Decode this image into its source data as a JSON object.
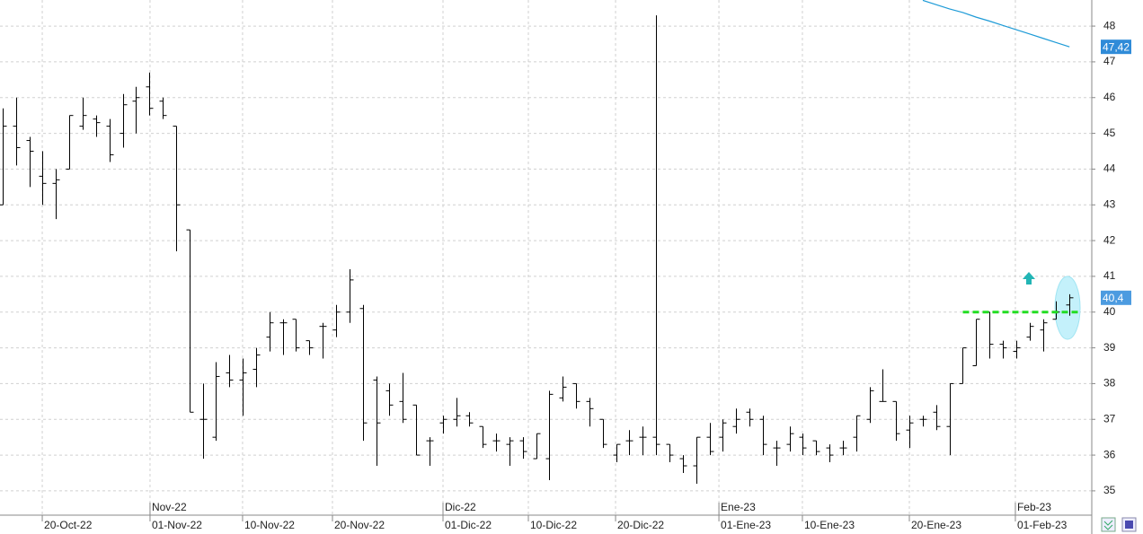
{
  "chart_data": {
    "type": "ohlc",
    "xlim": [
      -0.2,
      81.67
    ],
    "ylim": [
      34.32,
      48.73
    ],
    "yticks": [
      35,
      36,
      37,
      38,
      39,
      40,
      41,
      42,
      43,
      44,
      45,
      46,
      47,
      48
    ],
    "xticks": [
      {
        "value": 2.97,
        "label": "20-Oct-22"
      },
      {
        "value": 11.05,
        "label": "01-Nov-22"
      },
      {
        "value": 17.99,
        "label": "10-Nov-22"
      },
      {
        "value": 24.73,
        "label": "20-Nov-22"
      },
      {
        "value": 33.02,
        "label": "01-Dic-22"
      },
      {
        "value": 39.42,
        "label": "10-Dic-22"
      },
      {
        "value": 45.96,
        "label": "20-Dic-22"
      },
      {
        "value": 53.71,
        "label": "01-Ene-23"
      },
      {
        "value": 59.97,
        "label": "10-Ene-23"
      },
      {
        "value": 67.99,
        "label": "20-Ene-23"
      },
      {
        "value": 75.94,
        "label": "01-Feb-23"
      }
    ],
    "month_ticks": [
      {
        "value": 11.05,
        "label": "Nov-22"
      },
      {
        "value": 33.02,
        "label": "Dic-22"
      },
      {
        "value": 53.71,
        "label": "Ene-23"
      },
      {
        "value": 75.94,
        "label": "Feb-23"
      }
    ],
    "grid": true,
    "color": "#000000",
    "open": [
      43.0,
      45.2,
      44.8,
      43.8,
      43.6,
      44.0,
      45.2,
      45.4,
      45.2,
      45.0,
      45.9,
      46.3,
      45.9,
      45.2,
      42.3,
      37.0,
      36.5,
      38.3,
      38.1,
      38.4,
      39.3,
      39.7,
      39.8,
      39.2,
      39.6,
      39.5,
      40.0,
      40.1,
      38.1,
      37.8,
      37.5,
      37.4,
      36.4,
      36.9,
      37.0,
      37.1,
      36.8,
      36.4,
      36.3,
      36.4,
      35.9,
      35.9,
      37.6,
      38.0,
      37.5,
      37.0,
      36.0,
      36.4,
      36.5,
      36.5,
      36.3,
      35.9,
      35.7,
      36.5,
      36.5,
      36.8,
      37.2,
      37.0,
      36.2,
      36.3,
      36.5,
      36.4,
      36.2,
      36.2,
      36.5,
      37.0,
      37.5,
      37.5,
      36.7,
      37.0,
      37.2,
      36.8,
      38.0,
      38.5,
      40.0,
      39.1,
      38.9,
      39.3,
      39.5,
      39.8,
      40.2
    ],
    "high": [
      45.7,
      46.0,
      44.9,
      44.5,
      44.0,
      45.5,
      46.0,
      45.5,
      45.4,
      46.1,
      46.3,
      46.7,
      46.0,
      45.2,
      42.3,
      38.0,
      38.6,
      38.8,
      38.7,
      39.0,
      40.0,
      39.8,
      39.8,
      39.2,
      39.7,
      40.2,
      41.2,
      40.2,
      38.2,
      38.0,
      38.3,
      37.4,
      36.5,
      37.1,
      37.6,
      37.2,
      36.8,
      36.6,
      36.5,
      36.5,
      36.6,
      37.8,
      38.2,
      38.0,
      37.6,
      37.0,
      36.3,
      36.7,
      36.8,
      48.3,
      36.3,
      36.0,
      36.5,
      36.9,
      37.0,
      37.3,
      37.3,
      37.1,
      36.4,
      36.8,
      36.6,
      36.4,
      36.3,
      36.4,
      37.1,
      37.9,
      38.4,
      37.5,
      37.1,
      37.1,
      37.4,
      38.0,
      39.0,
      39.8,
      40.0,
      39.2,
      39.2,
      39.7,
      39.8,
      40.3,
      40.5
    ],
    "low": [
      43.0,
      44.1,
      43.5,
      43.0,
      42.6,
      44.0,
      45.1,
      44.9,
      44.2,
      44.6,
      45.0,
      45.5,
      45.4,
      41.7,
      37.2,
      35.9,
      36.4,
      37.9,
      37.1,
      37.9,
      38.9,
      38.8,
      38.9,
      38.8,
      38.7,
      39.3,
      39.7,
      36.4,
      35.7,
      37.1,
      36.9,
      36.0,
      35.7,
      36.6,
      36.8,
      36.8,
      36.2,
      36.1,
      35.7,
      35.9,
      35.9,
      35.3,
      37.5,
      37.3,
      36.8,
      36.2,
      35.8,
      36.0,
      36.0,
      36.0,
      35.8,
      35.5,
      35.2,
      36.0,
      36.1,
      36.6,
      36.8,
      36.0,
      35.7,
      36.1,
      36.0,
      36.0,
      35.8,
      36.0,
      36.1,
      36.9,
      37.5,
      36.4,
      36.2,
      36.8,
      36.7,
      36.0,
      38.0,
      38.5,
      38.7,
      38.7,
      38.7,
      39.2,
      38.9,
      39.8,
      39.9
    ],
    "close": [
      45.2,
      44.6,
      44.5,
      43.6,
      43.7,
      45.5,
      45.5,
      45.3,
      44.4,
      45.8,
      46.0,
      45.7,
      45.5,
      43.0,
      37.2,
      37.0,
      38.2,
      38.1,
      38.3,
      38.8,
      39.7,
      39.7,
      39.0,
      39.0,
      39.6,
      40.0,
      40.9,
      36.9,
      36.9,
      37.4,
      37.0,
      36.0,
      36.4,
      37.0,
      37.1,
      36.9,
      36.3,
      36.4,
      36.4,
      36.1,
      36.6,
      37.7,
      37.9,
      37.5,
      37.3,
      36.3,
      36.3,
      36.4,
      36.5,
      36.3,
      36.0,
      35.7,
      36.5,
      36.1,
      36.9,
      37.0,
      37.0,
      36.3,
      36.2,
      36.6,
      36.2,
      36.1,
      36.0,
      36.2,
      37.1,
      37.8,
      37.5,
      36.6,
      36.9,
      37.0,
      36.8,
      38.0,
      39.0,
      39.8,
      39.1,
      39.0,
      39.0,
      39.6,
      39.7,
      40.0,
      40.4
    ],
    "series": [
      {
        "color": "#1e9bd7",
        "values": [
          null,
          null,
          null,
          null,
          null,
          null,
          null,
          null,
          null,
          null,
          null,
          null,
          null,
          null,
          null,
          null,
          null,
          null,
          null,
          null,
          null,
          null,
          null,
          null,
          null,
          null,
          null,
          null,
          null,
          null,
          null,
          null,
          null,
          null,
          null,
          null,
          null,
          null,
          null,
          null,
          null,
          null,
          null,
          null,
          null,
          null,
          null,
          null,
          null,
          null,
          null,
          null,
          null,
          null,
          null,
          null,
          null,
          null,
          null,
          null,
          null,
          null,
          null,
          null,
          null,
          null,
          null,
          null,
          null,
          48.72,
          48.6,
          48.48,
          48.38,
          48.25,
          48.14,
          48.02,
          47.9,
          47.78,
          47.66,
          47.54,
          47.42
        ]
      }
    ],
    "price_tags": [
      {
        "value": 47.42,
        "label": "47,42",
        "color": "#2f8bd8"
      },
      {
        "value": 40.4,
        "label": "40,4",
        "color": "#4c9be0"
      }
    ],
    "hline": {
      "value": 40.0,
      "x_range": [
        72,
        80.7
      ],
      "color": "#22dd22"
    }
  }
}
